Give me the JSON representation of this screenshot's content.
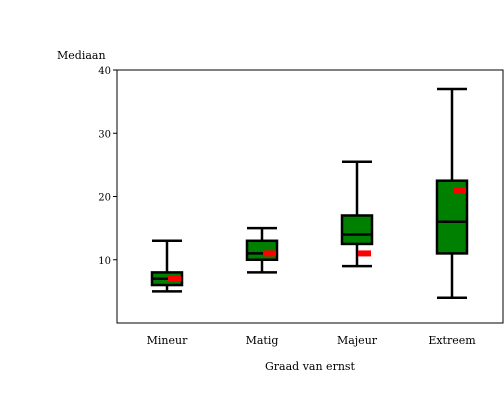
{
  "chart_data": {
    "type": "box",
    "ylabel": "Mediaan",
    "xlabel": "Graad van ernst",
    "ylim": [
      0,
      40
    ],
    "yticks": [
      10,
      20,
      30,
      40
    ],
    "categories": [
      "Mineur",
      "Matig",
      "Majeur",
      "Extreem"
    ],
    "boxes": [
      {
        "category": "Mineur",
        "whisker_low": 5,
        "q1": 6,
        "median": 7,
        "q3": 8,
        "whisker_high": 13,
        "mean": 7
      },
      {
        "category": "Matig",
        "whisker_low": 8,
        "q1": 10,
        "median": 11,
        "q3": 13,
        "whisker_high": 15,
        "mean": 11
      },
      {
        "category": "Majeur",
        "whisker_low": 9,
        "q1": 12.5,
        "median": 14,
        "q3": 17,
        "whisker_high": 25.5,
        "mean": 11
      },
      {
        "category": "Extreem",
        "whisker_low": 4,
        "q1": 11,
        "median": 16,
        "q3": 22.5,
        "whisker_high": 37,
        "mean": 21
      }
    ],
    "colors": {
      "box_fill": "#008000",
      "outline": "#000000",
      "mean_marker": "#ff0000"
    }
  }
}
